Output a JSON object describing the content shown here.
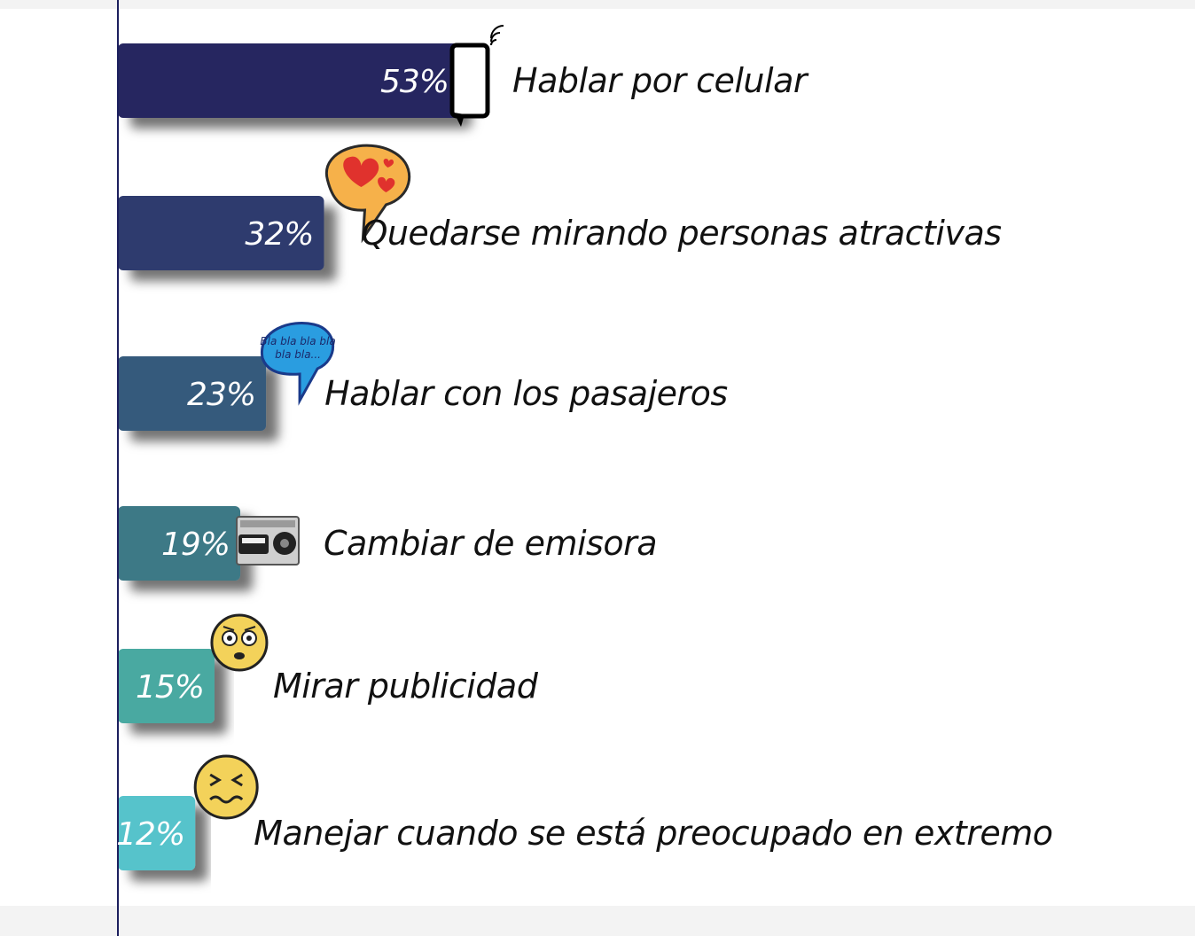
{
  "chart_data": {
    "type": "bar",
    "orientation": "horizontal",
    "grid": false,
    "xlim": [
      0,
      53
    ],
    "categories": [
      "Hablar  por celular",
      "Quedarse mirando personas atractivas",
      "Hablar con los pasajeros",
      "Cambiar de emisora",
      "Mirar publicidad",
      "Manejar cuando se está preocupado en extremo"
    ],
    "values": [
      53,
      32,
      23,
      19,
      15,
      12
    ],
    "value_labels": [
      "53%",
      "32%",
      "23%",
      "19%",
      "15%",
      "12%"
    ],
    "colors": [
      "#272660",
      "#2f3b6e",
      "#355a7b",
      "#3c7986",
      "#4aa9a1",
      "#57c3cb"
    ],
    "icons": [
      "cell-phone-icon",
      "heart-speech-bubble-icon",
      "bla-speech-bubble-icon",
      "radio-icon",
      "worried-face-icon",
      "anxious-face-icon"
    ]
  },
  "annotations": {
    "bla_bubble_line1": "Bla bla bla bla",
    "bla_bubble_line2": "bla bla..."
  }
}
